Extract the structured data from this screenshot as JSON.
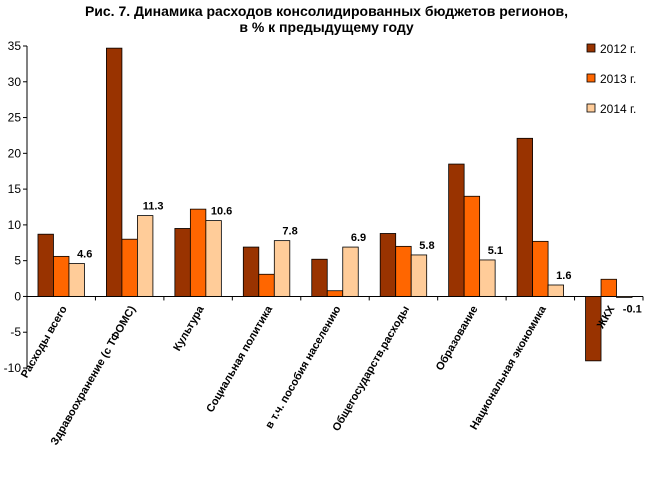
{
  "chart_data": {
    "type": "bar",
    "title": [
      "Рис. 7. Динамика расходов консолидированных бюджетов регионов,",
      "в % к предыдущему году"
    ],
    "categories": [
      "Расходы всего",
      "Здравоохранение (с ТФОМС)",
      "Культура",
      "Социальная политика",
      "в т.ч. пособия населению",
      "Общегосударств.расходы",
      "Образование",
      "Национальная экономика",
      "ЖКХ"
    ],
    "series": [
      {
        "name": "2012 г.",
        "color": "#993300",
        "values": [
          8.7,
          34.7,
          9.5,
          6.9,
          5.2,
          8.8,
          18.5,
          22.1,
          -9.0
        ]
      },
      {
        "name": "2013 г.",
        "color": "#FF6600",
        "values": [
          5.6,
          8.0,
          12.2,
          3.1,
          0.8,
          7.0,
          14.0,
          7.7,
          2.4
        ]
      },
      {
        "name": "2014 г.",
        "color": "#FFCC99",
        "values": [
          4.6,
          11.3,
          10.6,
          7.8,
          6.9,
          5.8,
          5.1,
          1.6,
          -0.1
        ]
      }
    ],
    "data_labels": [
      "4.6",
      "11.3",
      "10.6",
      "7.8",
      "6.9",
      "5.8",
      "5.1",
      "1.6",
      "-0.1"
    ],
    "ylim": [
      -10,
      35
    ],
    "yticks": [
      -10,
      -5,
      0,
      5,
      10,
      15,
      20,
      25,
      30,
      35
    ],
    "legend_position": "right",
    "grid": false
  }
}
